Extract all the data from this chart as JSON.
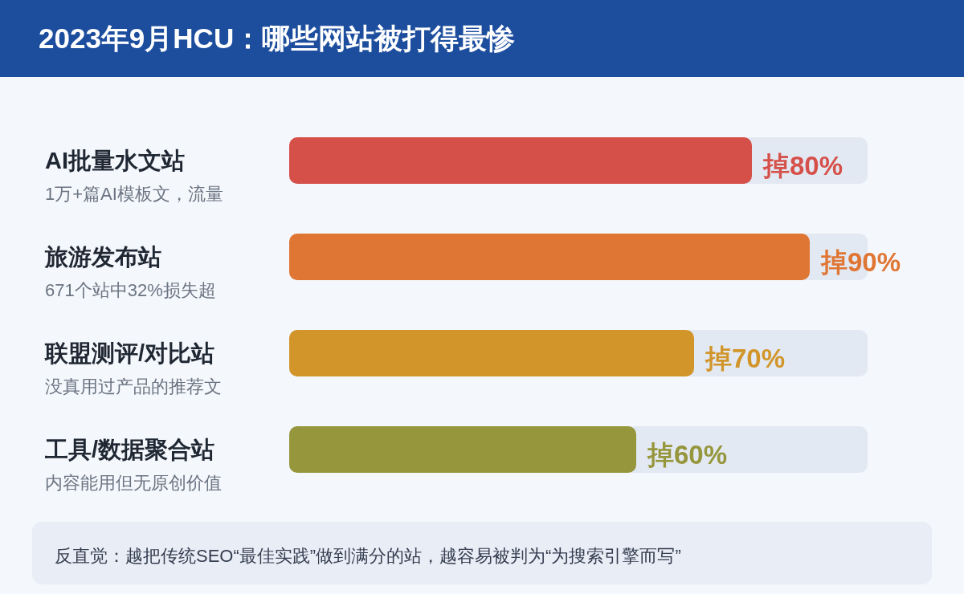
{
  "chart_data": {
    "type": "bar",
    "orientation": "horizontal",
    "title": "2023年9月HCU：哪些网站被打得最惨",
    "categories": [
      "AI批量水文站",
      "旅游发布站",
      "联盟测评/对比站",
      "工具/数据聚合站"
    ],
    "values": [
      80,
      90,
      70,
      60
    ],
    "colors": [
      "#d6504a",
      "#e07634",
      "#d1952a",
      "#96963c"
    ],
    "value_labels": [
      "掉80%",
      "掉90%",
      "掉70%",
      "掉60%"
    ],
    "xlim": [
      0,
      100
    ],
    "tick_labels": "y",
    "annotations": [
      "1万+篇AI模板文，流量",
      "671个站中32%损失超",
      "没真用过产品的推荐文",
      "内容能用但无原创价值",
      "反直觉：越把传统SEO“最佳实践”做到满分的站，越容易被判为“为搜索引擎而写”"
    ]
  }
}
